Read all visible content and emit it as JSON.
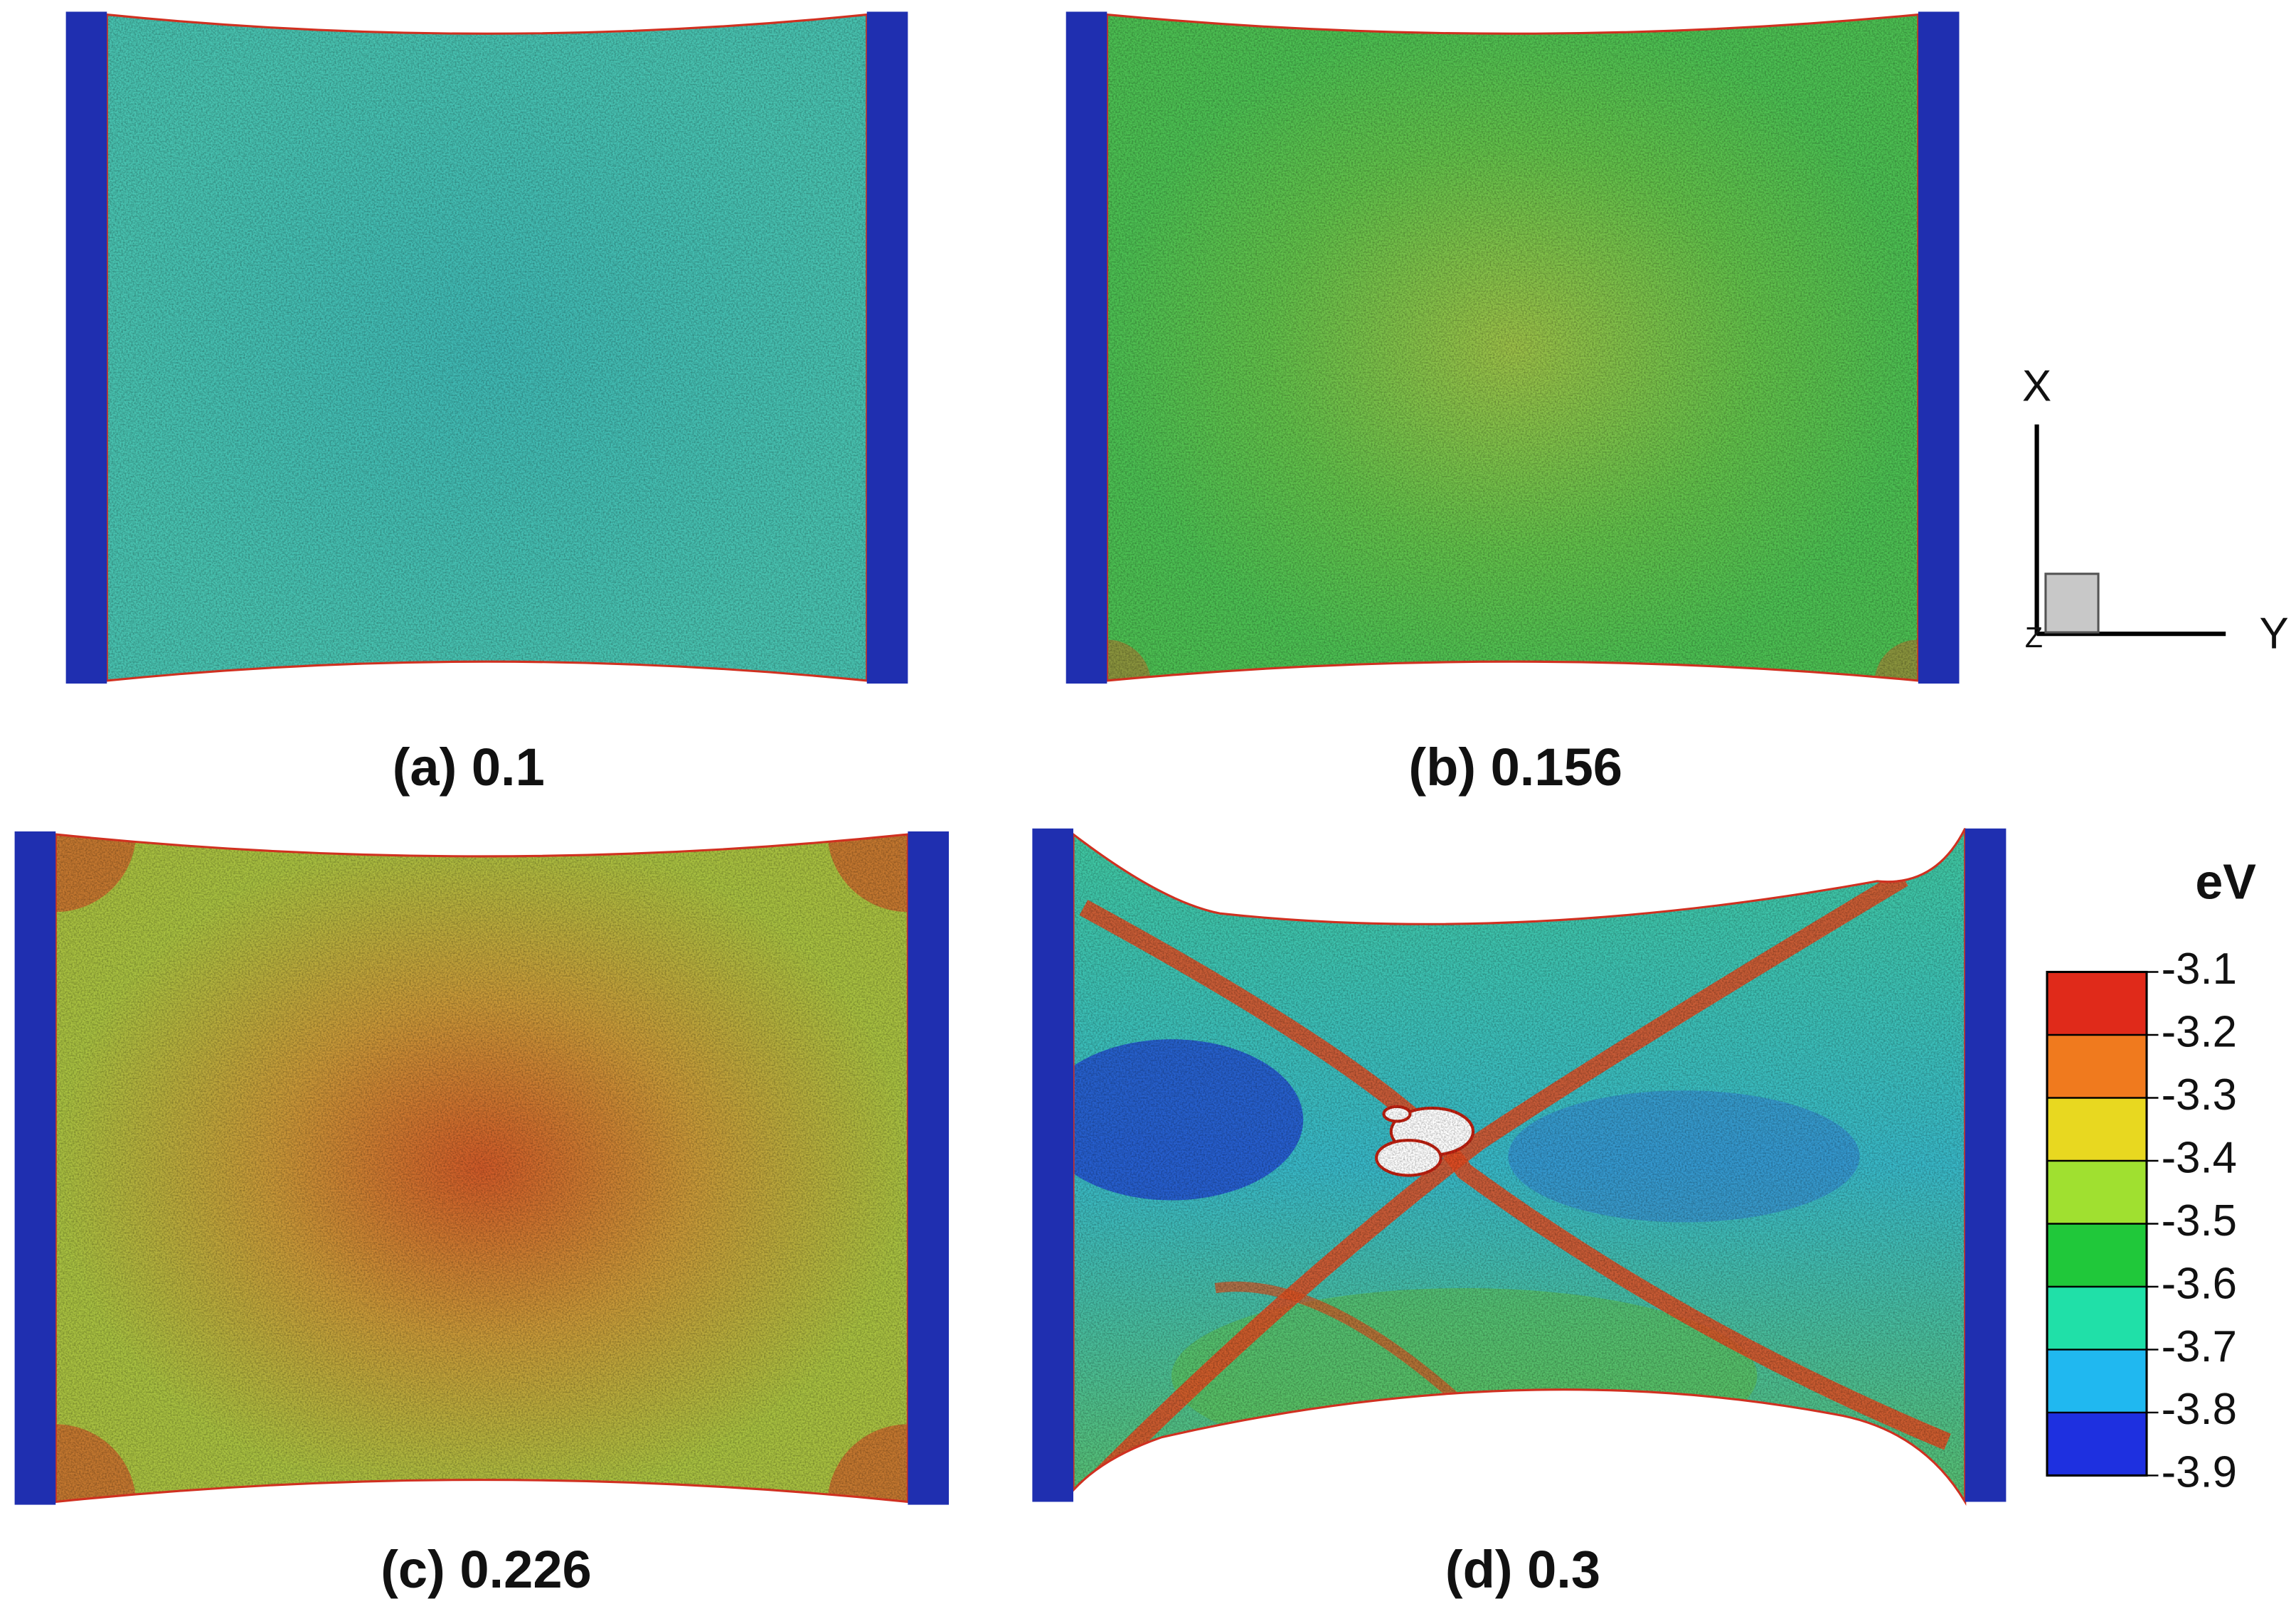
{
  "panels": [
    {
      "label": "(a) 0.1"
    },
    {
      "label": "(b) 0.156"
    },
    {
      "label": "(c) 0.226"
    },
    {
      "label": "(d) 0.3"
    }
  ],
  "colorbar": {
    "title": "eV",
    "ticks": [
      -3.1,
      -3.2,
      -3.3,
      -3.4,
      -3.5,
      -3.6,
      -3.7,
      -3.8,
      -3.9
    ]
  },
  "axes": {
    "x": "X",
    "y": "Y",
    "z": "Z"
  }
}
